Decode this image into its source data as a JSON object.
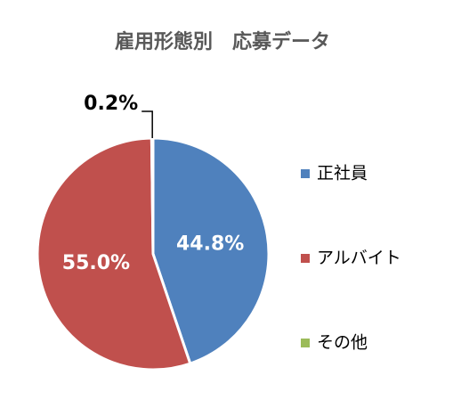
{
  "chart_data": {
    "type": "pie",
    "title": "雇用形態別　応募データ",
    "categories": [
      "正社員",
      "アルバイト",
      "その他"
    ],
    "values": [
      44.8,
      55.0,
      0.2
    ],
    "value_labels": [
      "44.8%",
      "55.0%",
      "0.2%"
    ],
    "colors": [
      "#4f81bd",
      "#c0504d",
      "#9bbb59"
    ],
    "legend": "right"
  }
}
